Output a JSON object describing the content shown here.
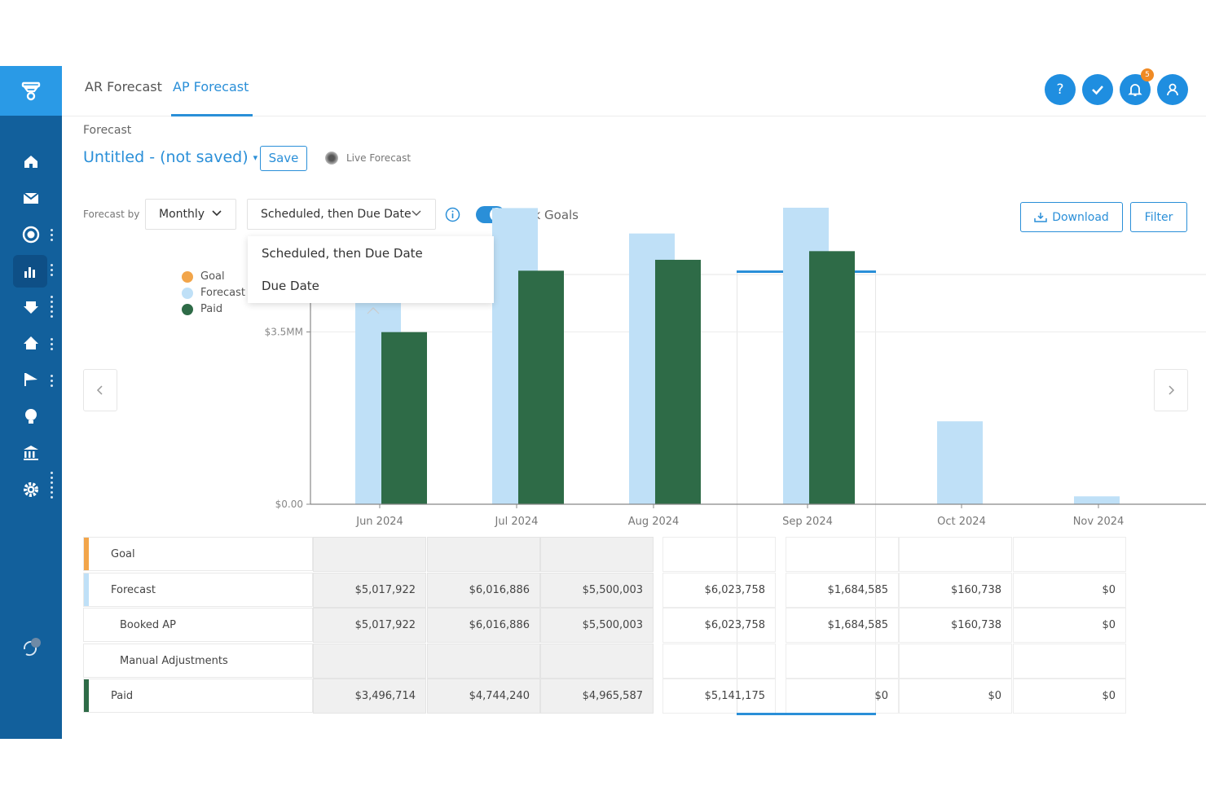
{
  "top_tabs": [
    {
      "label": "AR Forecast"
    },
    {
      "label": "AP Forecast"
    }
  ],
  "header_buttons": {
    "help_symbol": "?",
    "notification_count": "5"
  },
  "forecast": {
    "section_label": "Forecast",
    "name": "Untitled - (not saved)",
    "save_label": "Save",
    "live_label": "Live Forecast"
  },
  "controls": {
    "forecast_by_label": "Forecast by",
    "period": "Monthly",
    "method": "Scheduled, then Due Date",
    "track_goals_label": "Track Goals",
    "track_goals_on": true,
    "download_label": "Download",
    "filter_label": "Filter"
  },
  "dropdown": {
    "options": [
      "Scheduled, then Due Date",
      "Due Date"
    ]
  },
  "legend": [
    {
      "label": "Goal",
      "color": "#f2a54a"
    },
    {
      "label": "Forecast",
      "color": "#bfe0f7"
    },
    {
      "label": "Paid",
      "color": "#2e6b47"
    }
  ],
  "chart_data": {
    "type": "bar",
    "categories": [
      "Jun 2024",
      "Jul 2024",
      "Aug 2024",
      "Sep 2024",
      "Oct 2024",
      "Nov 2024"
    ],
    "series": [
      {
        "name": "Forecast",
        "color": "#bfe0f7",
        "values": [
          5017922,
          6016886,
          5500003,
          6023758,
          1684585,
          160738
        ]
      },
      {
        "name": "Paid",
        "color": "#2e6b47",
        "values": [
          3496714,
          4744240,
          4965587,
          5141175,
          0,
          0
        ]
      }
    ],
    "yticks": [
      {
        "value": 0,
        "label": "$0.00"
      },
      {
        "value": 3500000,
        "label": "$3.5MM"
      }
    ],
    "ylim": [
      0,
      7000000
    ]
  },
  "table": {
    "rows": [
      {
        "label": "Goal",
        "color": "#f2a54a",
        "indent": false,
        "values": [
          "",
          "",
          "",
          "",
          "",
          "",
          ""
        ]
      },
      {
        "label": "Forecast",
        "color": "#bfe0f7",
        "indent": false,
        "values": [
          "$5,017,922",
          "$6,016,886",
          "$5,500,003",
          "$6,023,758",
          "$1,684,585",
          "$160,738",
          "$0"
        ]
      },
      {
        "label": "Booked AP",
        "color": "",
        "indent": true,
        "values": [
          "$5,017,922",
          "$6,016,886",
          "$5,500,003",
          "$6,023,758",
          "$1,684,585",
          "$160,738",
          "$0"
        ]
      },
      {
        "label": "Manual Adjustments",
        "color": "",
        "indent": true,
        "values": [
          "",
          "",
          "",
          "",
          "",
          "",
          ""
        ]
      },
      {
        "label": "Paid",
        "color": "#2e6b47",
        "indent": false,
        "values": [
          "$3,496,714",
          "$4,744,240",
          "$4,965,587",
          "$5,141,175",
          "$0",
          "$0",
          "$0"
        ]
      }
    ]
  }
}
